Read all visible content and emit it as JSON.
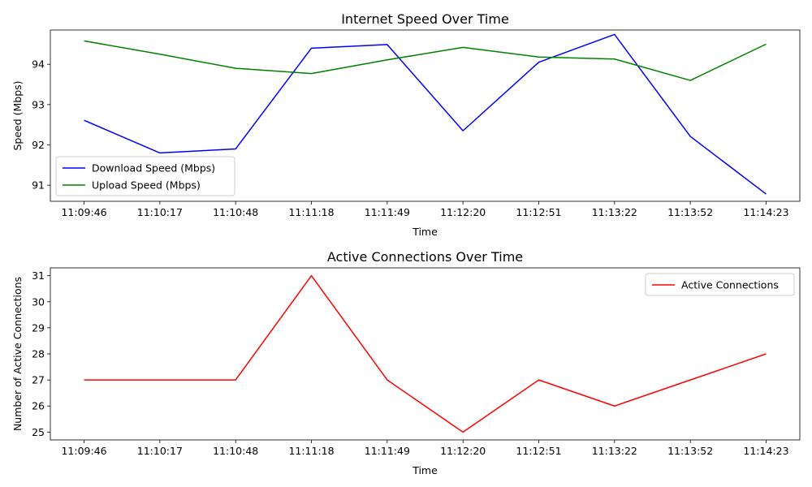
{
  "chart_data": [
    {
      "type": "line",
      "title": "Internet Speed Over Time",
      "xlabel": "Time",
      "ylabel": "Speed (Mbps)",
      "categories": [
        "11:09:46",
        "11:10:17",
        "11:10:48",
        "11:11:18",
        "11:11:49",
        "11:12:20",
        "11:12:51",
        "11:13:22",
        "11:13:52",
        "11:14:23"
      ],
      "yticks": [
        91,
        92,
        93,
        94
      ],
      "ylim": [
        90.6,
        94.85
      ],
      "grid": false,
      "legend_position": "lower-left",
      "series": [
        {
          "name": "Download Speed (Mbps)",
          "color": "#0000ff",
          "values": [
            92.61,
            91.8,
            91.9,
            94.4,
            94.49,
            92.35,
            94.05,
            94.74,
            92.21,
            90.78
          ]
        },
        {
          "name": "Upload Speed (Mbps)",
          "color": "#008000",
          "values": [
            94.58,
            94.25,
            93.9,
            93.77,
            94.11,
            94.42,
            94.18,
            94.13,
            93.6,
            94.5
          ]
        }
      ]
    },
    {
      "type": "line",
      "title": "Active Connections Over Time",
      "xlabel": "Time",
      "ylabel": "Number of Active Connections",
      "categories": [
        "11:09:46",
        "11:10:17",
        "11:10:48",
        "11:11:18",
        "11:11:49",
        "11:12:20",
        "11:12:51",
        "11:13:22",
        "11:13:52",
        "11:14:23"
      ],
      "yticks": [
        25,
        26,
        27,
        28,
        29,
        30,
        31
      ],
      "ylim": [
        24.7,
        31.3
      ],
      "grid": false,
      "legend_position": "upper-right",
      "series": [
        {
          "name": "Active Connections",
          "color": "#ff0000",
          "values": [
            27,
            27,
            27,
            31,
            27,
            25,
            27,
            26,
            27,
            28
          ]
        }
      ]
    }
  ]
}
